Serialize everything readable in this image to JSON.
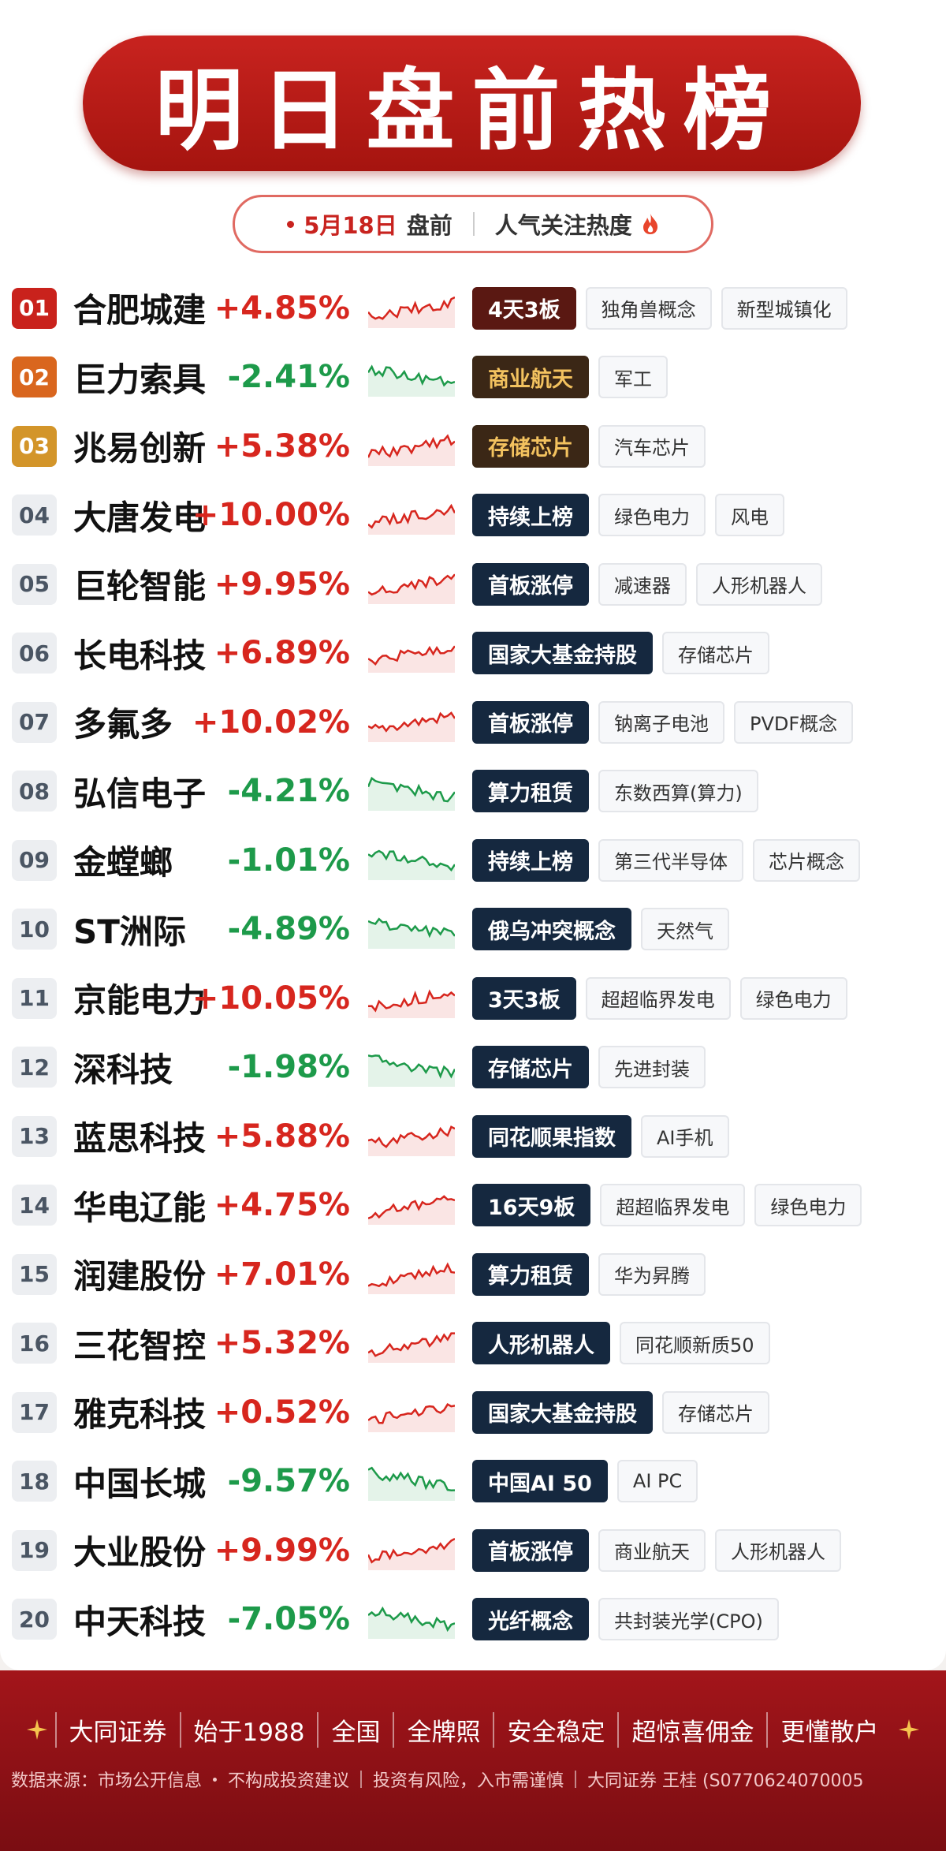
{
  "header": {
    "title": "明日盘前热榜",
    "date": "5月18日",
    "session": "盘前",
    "subtitle": "人气关注热度"
  },
  "rows": [
    {
      "rank": "01",
      "name": "合肥城建",
      "change": "+4.85%",
      "tags": [
        "4天3板",
        "独角兽概念",
        "新型城镇化"
      ]
    },
    {
      "rank": "02",
      "name": "巨力索具",
      "change": "-2.41%",
      "tags": [
        "商业航天",
        "军工"
      ]
    },
    {
      "rank": "03",
      "name": "兆易创新",
      "change": "+5.38%",
      "tags": [
        "存储芯片",
        "汽车芯片"
      ]
    },
    {
      "rank": "04",
      "name": "大唐发电",
      "change": "+10.00%",
      "tags": [
        "持续上榜",
        "绿色电力",
        "风电"
      ]
    },
    {
      "rank": "05",
      "name": "巨轮智能",
      "change": "+9.95%",
      "tags": [
        "首板涨停",
        "减速器",
        "人形机器人"
      ]
    },
    {
      "rank": "06",
      "name": "长电科技",
      "change": "+6.89%",
      "tags": [
        "国家大基金持股",
        "存储芯片"
      ]
    },
    {
      "rank": "07",
      "name": "多氟多",
      "change": "+10.02%",
      "tags": [
        "首板涨停",
        "钠离子电池",
        "PVDF概念"
      ]
    },
    {
      "rank": "08",
      "name": "弘信电子",
      "change": "-4.21%",
      "tags": [
        "算力租赁",
        "东数西算(算力)"
      ]
    },
    {
      "rank": "09",
      "name": "金螳螂",
      "change": "-1.01%",
      "tags": [
        "持续上榜",
        "第三代半导体",
        "芯片概念"
      ]
    },
    {
      "rank": "10",
      "name": "ST洲际",
      "change": "-4.89%",
      "tags": [
        "俄乌冲突概念",
        "天然气"
      ]
    },
    {
      "rank": "11",
      "name": "京能电力",
      "change": "+10.05%",
      "tags": [
        "3天3板",
        "超超临界发电",
        "绿色电力"
      ]
    },
    {
      "rank": "12",
      "name": "深科技",
      "change": "-1.98%",
      "tags": [
        "存储芯片",
        "先进封装"
      ]
    },
    {
      "rank": "13",
      "name": "蓝思科技",
      "change": "+5.88%",
      "tags": [
        "同花顺果指数",
        "AI手机"
      ]
    },
    {
      "rank": "14",
      "name": "华电辽能",
      "change": "+4.75%",
      "tags": [
        "16天9板",
        "超超临界发电",
        "绿色电力"
      ]
    },
    {
      "rank": "15",
      "name": "润建股份",
      "change": "+7.01%",
      "tags": [
        "算力租赁",
        "华为昇腾"
      ]
    },
    {
      "rank": "16",
      "name": "三花智控",
      "change": "+5.32%",
      "tags": [
        "人形机器人",
        "同花顺新质50"
      ]
    },
    {
      "rank": "17",
      "name": "雅克科技",
      "change": "+0.52%",
      "tags": [
        "国家大基金持股",
        "存储芯片"
      ]
    },
    {
      "rank": "18",
      "name": "中国长城",
      "change": "-9.57%",
      "tags": [
        "中国AI 50",
        "AI PC"
      ]
    },
    {
      "rank": "19",
      "name": "大业股份",
      "change": "+9.99%",
      "tags": [
        "首板涨停",
        "商业航天",
        "人形机器人"
      ]
    },
    {
      "rank": "20",
      "name": "中天科技",
      "change": "-7.05%",
      "tags": [
        "光纤概念",
        "共封装光学(CPO)"
      ]
    }
  ],
  "footer": {
    "slogans": [
      "大同证券",
      "始于1988",
      "全国",
      "全牌照",
      "安全稳定",
      "超惊喜佣金",
      "更懂散户"
    ],
    "disclaimer": [
      "数据来源：市场公开信息",
      "不构成投资建议",
      "投资有风险，入市需谨慎",
      "大同证券 王桂 (S0770624070005"
    ]
  }
}
